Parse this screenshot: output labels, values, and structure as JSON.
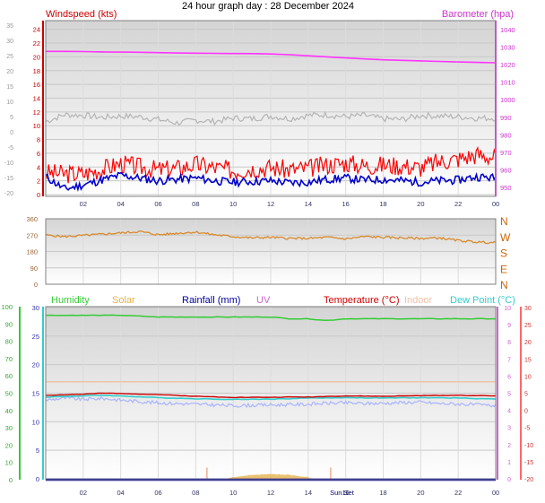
{
  "header": {
    "title": "24 hour graph day : 28 December 2024"
  },
  "colors": {
    "wind_gust": "#ff0000",
    "wind_avg": "#0000cc",
    "barometer": "#ff33ff",
    "gray_series": "#b4b4b4",
    "direction": "#d98a2b",
    "humidity": "#33cc33",
    "solar": "#e6b34d",
    "rainfall": "#000099",
    "uv": "#cc66cc",
    "temperature": "#cc0000",
    "indoor": "#f2c2a6",
    "dew_point": "#33cccc",
    "gray_temp": "#aab4ff"
  },
  "chart_data": [
    {
      "type": "line",
      "title": "24 hour graph day : 28 December 2024",
      "left_axis_label": "Windspeed (kts)",
      "right_axis_label": "Barometer (hpa)",
      "x_ticks": [
        "02",
        "04",
        "06",
        "08",
        "10",
        "12",
        "14",
        "16",
        "18",
        "20",
        "22",
        "00"
      ],
      "x_range_hours": [
        0,
        24
      ],
      "y_left_ticks": [
        "24",
        "22",
        "20",
        "18",
        "16",
        "14",
        "12",
        "10",
        "8",
        "6",
        "4",
        "2",
        "0"
      ],
      "y_left_outer_ticks": [
        "35",
        "30",
        "25",
        "20",
        "15",
        "10",
        "5",
        "0",
        "-5",
        "-10",
        "-15",
        "-20"
      ],
      "y_right_ticks": [
        "1040",
        "1030",
        "1020",
        "1010",
        "1000",
        "990",
        "980",
        "970",
        "960",
        "950"
      ],
      "y_left_range": [
        0,
        25
      ],
      "y_right_range": [
        945,
        1045
      ],
      "grid": true,
      "series": [
        {
          "key": "barometer",
          "axis": "right",
          "x": [
            0,
            1,
            2,
            3,
            4,
            5,
            6,
            7,
            8,
            9,
            10,
            11,
            12,
            13,
            14,
            15,
            16,
            17,
            18,
            19,
            20,
            21,
            22,
            23,
            24
          ],
          "values": [
            1027.5,
            1027.5,
            1027.4,
            1027.2,
            1027.1,
            1027,
            1026.8,
            1026.6,
            1026.5,
            1026.4,
            1026.3,
            1026.2,
            1026,
            1025.6,
            1025,
            1024.4,
            1023.8,
            1023.2,
            1022.7,
            1022.4,
            1022.1,
            1021.8,
            1021.5,
            1021.2,
            1021
          ]
        },
        {
          "key": "gray_series",
          "axis": "left",
          "x": [
            0,
            1,
            2,
            3,
            4,
            5,
            6,
            7,
            8,
            9,
            10,
            11,
            12,
            13,
            14,
            15,
            16,
            17,
            18,
            19,
            20,
            21,
            22,
            23,
            24
          ],
          "values": [
            10.6,
            11.6,
            11.5,
            11.2,
            11.4,
            11.3,
            10.9,
            10.4,
            10.8,
            10.6,
            11.1,
            11.0,
            11.4,
            11.0,
            11.5,
            11.6,
            11.3,
            11.5,
            11.0,
            10.9,
            11.5,
            11.4,
            11.3,
            11.1,
            11.1
          ]
        },
        {
          "key": "wind_gust",
          "axis": "left",
          "x": [
            0,
            1,
            2,
            3,
            4,
            5,
            6,
            7,
            8,
            9,
            10,
            11,
            12,
            13,
            14,
            15,
            16,
            17,
            18,
            19,
            20,
            21,
            22,
            23,
            24
          ],
          "values": [
            3.2,
            3.0,
            3.0,
            3.7,
            4.5,
            4.0,
            3.6,
            3.8,
            4.4,
            3.9,
            3.5,
            3.8,
            3.9,
            3.6,
            3.8,
            4.3,
            4.6,
            4.2,
            4.3,
            4.2,
            3.9,
            4.8,
            5.2,
            5.8,
            5.4
          ]
        },
        {
          "key": "wind_avg",
          "axis": "left",
          "x": [
            0,
            1,
            2,
            3,
            4,
            5,
            6,
            7,
            8,
            9,
            10,
            11,
            12,
            13,
            14,
            15,
            16,
            17,
            18,
            19,
            20,
            21,
            22,
            23,
            24
          ],
          "values": [
            2.6,
            0.8,
            1.4,
            2.1,
            2.8,
            2.4,
            2.0,
            2.2,
            2.4,
            2.0,
            1.8,
            1.9,
            2.0,
            1.7,
            1.8,
            2.2,
            2.4,
            2.1,
            2.2,
            2.0,
            1.8,
            2.0,
            2.1,
            2.6,
            2.4
          ]
        }
      ]
    },
    {
      "type": "line",
      "y_ticks": [
        "360",
        "270",
        "180",
        "90",
        "0"
      ],
      "y_right_labels": [
        "N",
        "W",
        "S",
        "E",
        "N"
      ],
      "y_range": [
        0,
        360
      ],
      "x_range_hours": [
        0,
        24
      ],
      "grid": true,
      "series": [
        {
          "key": "direction",
          "x": [
            0,
            1,
            2,
            3,
            4,
            5,
            6,
            7,
            8,
            9,
            10,
            11,
            12,
            13,
            14,
            15,
            16,
            17,
            18,
            19,
            20,
            21,
            22,
            23,
            24
          ],
          "values": [
            270,
            262,
            268,
            275,
            282,
            290,
            272,
            280,
            287,
            272,
            262,
            255,
            258,
            252,
            252,
            258,
            250,
            262,
            258,
            255,
            252,
            255,
            240,
            232,
            228
          ]
        }
      ]
    },
    {
      "type": "line",
      "legend": [
        "Humidity",
        "Solar",
        "Rainfall (mm)",
        "UV",
        "Temperature (°C)",
        "Indoor",
        "Dew Point (°C)"
      ],
      "x_ticks": [
        "02",
        "04",
        "06",
        "08",
        "10",
        "12",
        "14",
        "16",
        "18",
        "20",
        "22",
        "00"
      ],
      "x_range_hours": [
        0,
        24
      ],
      "y_left_ticks": [
        "100",
        "90",
        "80",
        "70",
        "60",
        "50",
        "40",
        "30",
        "20",
        "10",
        "0"
      ],
      "y_left2_ticks": [
        "30",
        "25",
        "20",
        "15",
        "10",
        "5",
        "0"
      ],
      "y_right_ticks": [
        "10",
        "9",
        "8",
        "7",
        "6",
        "5",
        "4",
        "3",
        "2",
        "1",
        "0"
      ],
      "y_right2_ticks": [
        "30",
        "25",
        "20",
        "15",
        "10",
        "5",
        "0",
        "-5",
        "-10",
        "-15",
        "-20"
      ],
      "y_temp_range": [
        -20,
        30
      ],
      "y_humidity_range": [
        0,
        100
      ],
      "annotation": "Sun Set",
      "grid": true,
      "series": [
        {
          "key": "humidity",
          "axis": "humidity",
          "x": [
            0,
            2,
            3,
            4,
            6,
            8,
            10,
            12,
            13,
            14,
            15,
            16,
            18,
            20,
            22,
            24
          ],
          "values": [
            95,
            95,
            95,
            95,
            94,
            94,
            94,
            94,
            93,
            93,
            92,
            93,
            93,
            93,
            93,
            93
          ]
        },
        {
          "key": "indoor",
          "axis": "temp",
          "x": [
            0,
            24
          ],
          "values": [
            8.3,
            8.3
          ]
        },
        {
          "key": "temperature",
          "axis": "temp",
          "x": [
            0,
            2,
            3,
            4,
            6,
            8,
            10,
            12,
            13,
            14,
            16,
            18,
            20,
            22,
            24
          ],
          "values": [
            4.4,
            4.7,
            5.0,
            4.9,
            4.6,
            4.1,
            3.8,
            3.8,
            3.9,
            3.9,
            4.2,
            4.1,
            4.3,
            4.4,
            4.2
          ]
        },
        {
          "key": "dew_point",
          "axis": "temp",
          "x": [
            0,
            2,
            3,
            4,
            6,
            8,
            10,
            12,
            13,
            14,
            16,
            18,
            20,
            22,
            24
          ],
          "values": [
            3.9,
            4.2,
            4.4,
            4.2,
            3.7,
            3.4,
            3.2,
            3.3,
            3.4,
            3.6,
            3.7,
            3.6,
            3.7,
            3.6,
            3.3
          ]
        },
        {
          "key": "gray_temp",
          "axis": "temp",
          "x": [
            0,
            1,
            2,
            3,
            4,
            5,
            6,
            7,
            8,
            9,
            10,
            11,
            12,
            13,
            14,
            15,
            16,
            17,
            18,
            19,
            20,
            21,
            22,
            23,
            24
          ],
          "values": [
            3.0,
            3.6,
            3.2,
            3.5,
            3.0,
            2.6,
            2.2,
            2.0,
            1.8,
            1.6,
            1.4,
            1.5,
            1.6,
            1.7,
            1.8,
            2.1,
            2.2,
            2.0,
            2.1,
            2.3,
            2.4,
            2.0,
            1.9,
            1.6,
            1.4
          ]
        },
        {
          "key": "solar",
          "axis": "temp",
          "x": [
            9.5,
            10,
            11,
            12,
            13,
            14,
            14.3
          ],
          "values": [
            -19.9,
            -19.3,
            -18.6,
            -18.4,
            -18.6,
            -19.3,
            -19.9
          ]
        },
        {
          "key": "rainfall",
          "axis": "temp",
          "x": [
            0,
            24
          ],
          "values": [
            -20,
            -20
          ]
        }
      ]
    }
  ]
}
